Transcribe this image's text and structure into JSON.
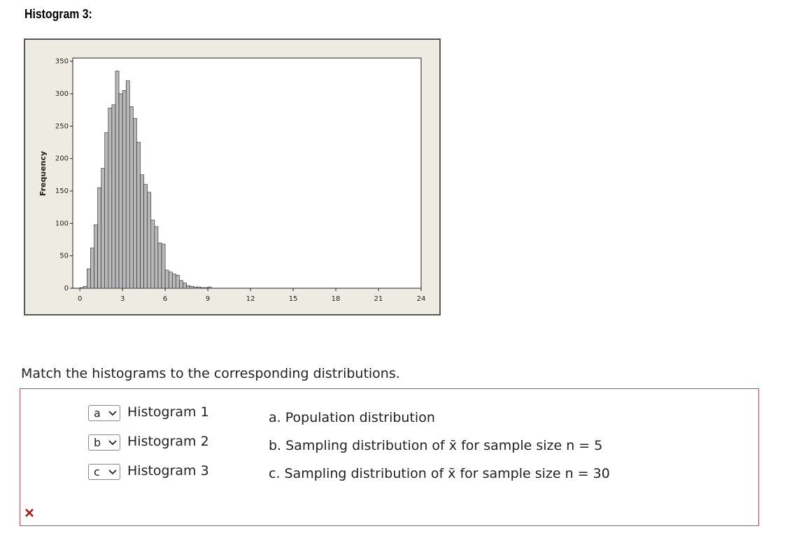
{
  "heading": "Histogram 3:",
  "chart_data": {
    "type": "histogram",
    "ylabel": "Frequency",
    "bins": [
      0,
      0.25,
      0.5,
      0.75,
      1,
      1.25,
      1.5,
      1.75,
      2,
      2.25,
      2.5,
      2.75,
      3,
      3.25,
      3.5,
      3.75,
      4,
      4.25,
      4.5,
      4.75,
      5,
      5.25,
      5.5,
      5.75,
      6,
      6.25,
      6.5,
      6.75,
      7,
      7.25,
      7.5,
      7.75,
      8,
      8.25,
      8.5,
      8.75,
      9,
      9.25
    ],
    "values": [
      1,
      3,
      30,
      62,
      98,
      155,
      185,
      240,
      278,
      283,
      335,
      300,
      305,
      320,
      280,
      262,
      225,
      175,
      160,
      148,
      105,
      95,
      70,
      68,
      28,
      25,
      22,
      20,
      12,
      8,
      4,
      3,
      2,
      2,
      1,
      1,
      2
    ],
    "color": "#b8b8b8",
    "xlim": [
      -0.5,
      24
    ],
    "xticks": [
      0,
      3,
      6,
      9,
      12,
      15,
      18,
      21,
      24
    ],
    "ylim": [
      0,
      355
    ],
    "yticks": [
      0,
      50,
      100,
      150,
      200,
      250,
      300,
      350
    ]
  },
  "question": "Match the histograms to the corresponding distributions.",
  "matches": [
    {
      "selected": "a",
      "label": "Histogram 1"
    },
    {
      "selected": "b",
      "label": "Histogram 2"
    },
    {
      "selected": "c",
      "label": "Histogram 3"
    }
  ],
  "options": [
    "a. Population distribution",
    "b. Sampling distribution of x̄ for sample size n = 5",
    "c. Sampling distribution of x̄ for sample size n = 30"
  ]
}
